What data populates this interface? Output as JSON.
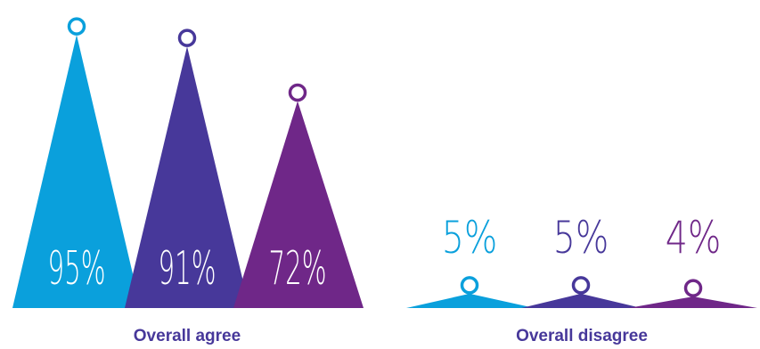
{
  "chart_data": {
    "type": "bar",
    "bar_shape": "triangle-peak",
    "grid": false,
    "legend": "none",
    "ylim": [
      0,
      100
    ],
    "groups": [
      {
        "label": "Overall agree",
        "values": [
          95,
          91,
          72
        ],
        "labels": [
          "95%",
          "91%",
          "72%"
        ],
        "colors": [
          "#0aa0dc",
          "#47389a",
          "#6f2788"
        ],
        "label_position": "inside"
      },
      {
        "label": "Overall disagree",
        "values": [
          5,
          5,
          4
        ],
        "labels": [
          "5%",
          "5%",
          "4%"
        ],
        "colors": [
          "#0aa0dc",
          "#47389a",
          "#6f2788"
        ],
        "label_position": "above"
      }
    ]
  },
  "colors": {
    "label_text": "#47389a",
    "inside_label_text": "#ffffff"
  }
}
